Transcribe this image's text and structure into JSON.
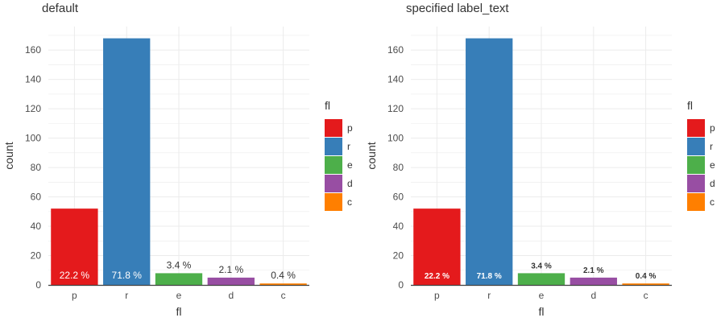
{
  "chart_data": [
    {
      "type": "bar",
      "title": "default",
      "xlabel": "fl",
      "ylabel": "count",
      "categories": [
        "p",
        "r",
        "e",
        "d",
        "c"
      ],
      "values": [
        52,
        168,
        8,
        5,
        1
      ],
      "labels": [
        "22.2 %",
        "71.8 %",
        "3.4 %",
        "2.1 %",
        "0.4 %"
      ],
      "yticks": [
        0,
        20,
        40,
        60,
        80,
        100,
        120,
        140,
        160
      ],
      "ylim": [
        0,
        176
      ],
      "grid": true,
      "legend": {
        "title": "fl",
        "position": "right",
        "entries": [
          "p",
          "r",
          "e",
          "d",
          "c"
        ]
      },
      "label_font": "sans"
    },
    {
      "type": "bar",
      "title": "specified label_text",
      "xlabel": "fl",
      "ylabel": "count",
      "categories": [
        "p",
        "r",
        "e",
        "d",
        "c"
      ],
      "values": [
        52,
        168,
        8,
        5,
        1
      ],
      "labels": [
        "22.2 %",
        "71.8 %",
        "3.4 %",
        "2.1 %",
        "0.4 %"
      ],
      "yticks": [
        0,
        20,
        40,
        60,
        80,
        100,
        120,
        140,
        160
      ],
      "ylim": [
        0,
        176
      ],
      "grid": true,
      "legend": {
        "title": "fl",
        "position": "right",
        "entries": [
          "p",
          "r",
          "e",
          "d",
          "c"
        ]
      },
      "label_font": "serif-bold"
    }
  ],
  "colors": {
    "p": "#e41a1c",
    "r": "#377eb8",
    "e": "#4daf4a",
    "d": "#984ea3",
    "c": "#ff7f00",
    "grid": "#ebebeb",
    "axis_text": "#4d4d4d",
    "label_inside": "#ffffff",
    "label_outside": "#333333"
  }
}
